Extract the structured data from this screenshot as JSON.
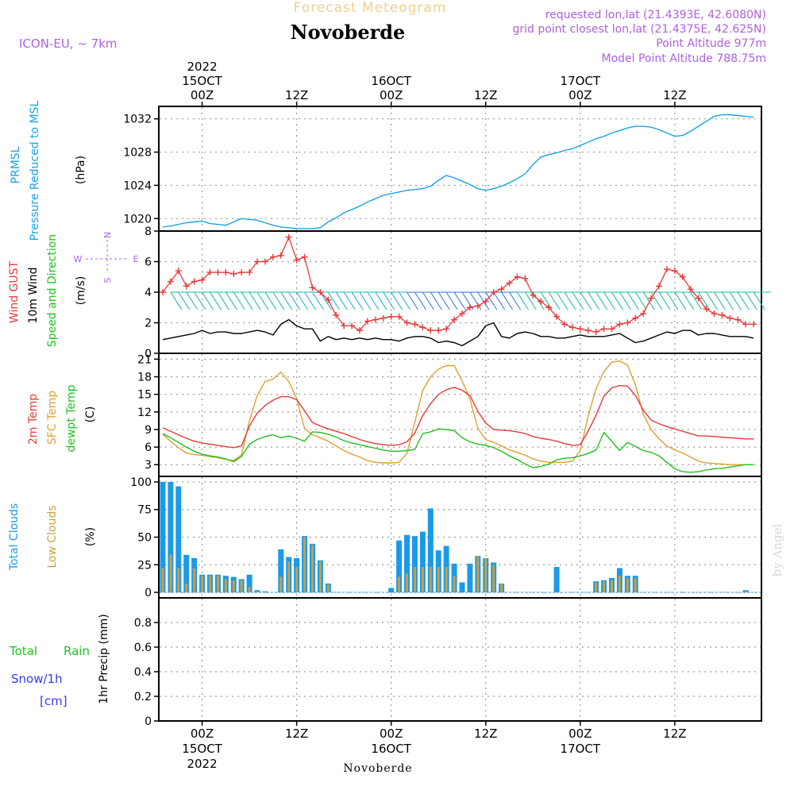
{
  "header": {
    "banner": "Forecast Meteogram",
    "location": "Novoberde",
    "model": "ICON-EU, ~ 7km",
    "requested": "requested lon,lat (21.4393E, 42.6080N)",
    "gridpoint": "grid point closest lon,lat (21.4375E, 42.625N)",
    "point_altitude": "Point Altitude 977m",
    "model_altitude": "Model Point Altitude 788.75m",
    "year": "2022",
    "watermark": "by Angel",
    "footer_location": "Novoberde"
  },
  "time_axis": {
    "top_ticks": [
      {
        "t": 0,
        "lines": [
          "2022",
          "15OCT",
          "00Z"
        ]
      },
      {
        "t": 12,
        "lines": [
          "12Z"
        ]
      },
      {
        "t": 24,
        "lines": [
          "16OCT",
          "00Z"
        ]
      },
      {
        "t": 36,
        "lines": [
          "12Z"
        ]
      },
      {
        "t": 48,
        "lines": [
          "17OCT",
          "00Z"
        ]
      },
      {
        "t": 60,
        "lines": [
          "12Z"
        ]
      }
    ],
    "bottom_ticks": [
      {
        "t": 0,
        "lines": [
          "00Z",
          "15OCT",
          "2022"
        ]
      },
      {
        "t": 12,
        "lines": [
          "12Z"
        ]
      },
      {
        "t": 24,
        "lines": [
          "00Z",
          "16OCT"
        ]
      },
      {
        "t": 36,
        "lines": [
          "12Z"
        ]
      },
      {
        "t": 48,
        "lines": [
          "00Z",
          "17OCT"
        ]
      },
      {
        "t": 60,
        "lines": [
          "12Z"
        ]
      }
    ],
    "range_hours": [
      -5.5,
      71
    ]
  },
  "panels": {
    "pressure": {
      "labels": [
        "PRMSL",
        "Pressure Reduced to MSL",
        "(hPa)"
      ],
      "yticks": [
        "1020",
        "1024",
        "1028",
        "1032"
      ],
      "ylim": [
        1018.5,
        1033.5
      ]
    },
    "wind": {
      "labels": [
        "Wind GUST",
        "10m Wind",
        "Speed and Direction",
        "(m/s)"
      ],
      "compass": [
        "N",
        "S",
        "W",
        "E"
      ],
      "yticks": [
        "0",
        "2",
        "4",
        "6",
        "8"
      ],
      "ylim": [
        0,
        8
      ]
    },
    "temp": {
      "labels": [
        "2m Temp",
        "SFC Temp",
        "dewpt Temp",
        "(C)"
      ],
      "yticks": [
        "3",
        "6",
        "9",
        "12",
        "15",
        "18",
        "21"
      ],
      "ylim": [
        1,
        22
      ]
    },
    "clouds": {
      "labels": [
        "Total Clouds",
        "Low Clouds",
        "(%)"
      ],
      "yticks": [
        "0",
        "25",
        "50",
        "75",
        "100"
      ],
      "ylim": [
        -5,
        105
      ]
    },
    "precip": {
      "labels": [
        "Total",
        "Rain",
        "Snow/1h",
        "[cm]",
        "1hr Precip (mm)"
      ],
      "yticks": [
        "0",
        "0.2",
        "0.4",
        "0.6",
        "0.8"
      ],
      "ylim": [
        0,
        1
      ]
    }
  },
  "colors": {
    "pressure": "#1aa3e8",
    "gust": "#e83a3a",
    "wind": "#000000",
    "temp2m": "#e83a3a",
    "sfc": "#e0a030",
    "dewpt": "#20c020",
    "total_clouds": "#1a9ae8",
    "low_clouds": "#c8a040",
    "model_text": "#b060e0",
    "precip_total": "#20c020",
    "snow": "#3a3ae8"
  },
  "chart_data": [
    {
      "type": "line",
      "name": "pressure",
      "x": [
        -5,
        -4,
        -3,
        -2,
        -1,
        0,
        1,
        2,
        3,
        4,
        5,
        6,
        7,
        8,
        9,
        10,
        11,
        12,
        13,
        14,
        15,
        16,
        17,
        18,
        19,
        20,
        21,
        22,
        23,
        24,
        25,
        26,
        27,
        28,
        29,
        30,
        31,
        32,
        33,
        34,
        35,
        36,
        37,
        38,
        39,
        40,
        41,
        42,
        43,
        44,
        45,
        46,
        47,
        48,
        49,
        50,
        51,
        52,
        53,
        54,
        55,
        56,
        57,
        58,
        59,
        60,
        61,
        62,
        63,
        64,
        65,
        66,
        67,
        68,
        69,
        70
      ],
      "series": [
        {
          "values": [
            1019.0,
            1019.1,
            1019.3,
            1019.5,
            1019.6,
            1019.7,
            1019.4,
            1019.3,
            1019.2,
            1019.6,
            1020.0,
            1019.9,
            1019.8,
            1019.5,
            1019.2,
            1019.0,
            1018.9,
            1018.8,
            1018.8,
            1018.8,
            1018.9,
            1019.6,
            1020.1,
            1020.7,
            1021.1,
            1021.5,
            1022.0,
            1022.4,
            1022.8,
            1023.0,
            1023.2,
            1023.4,
            1023.5,
            1023.6,
            1023.9,
            1024.6,
            1025.2,
            1024.9,
            1024.5,
            1024.1,
            1023.6,
            1023.4,
            1023.6,
            1023.9,
            1024.3,
            1024.8,
            1025.4,
            1026.5,
            1027.4,
            1027.7,
            1027.9,
            1028.2,
            1028.4,
            1028.8,
            1029.2,
            1029.6,
            1029.9,
            1030.3,
            1030.6,
            1030.9,
            1031.1,
            1031.1,
            1031.0,
            1030.7,
            1030.3,
            1029.9,
            1030.0,
            1030.5,
            1031.1,
            1031.7,
            1032.3,
            1032.5,
            1032.5,
            1032.4,
            1032.3,
            1032.2
          ]
        }
      ],
      "ylim": [
        1018.5,
        1033.5
      ]
    },
    {
      "type": "line",
      "name": "wind",
      "x": [
        -5,
        -4,
        -3,
        -2,
        -1,
        0,
        1,
        2,
        3,
        4,
        5,
        6,
        7,
        8,
        9,
        10,
        11,
        12,
        13,
        14,
        15,
        16,
        17,
        18,
        19,
        20,
        21,
        22,
        23,
        24,
        25,
        26,
        27,
        28,
        29,
        30,
        31,
        32,
        33,
        34,
        35,
        36,
        37,
        38,
        39,
        40,
        41,
        42,
        43,
        44,
        45,
        46,
        47,
        48,
        49,
        50,
        51,
        52,
        53,
        54,
        55,
        56,
        57,
        58,
        59,
        60,
        61,
        62,
        63,
        64,
        65,
        66,
        67,
        68,
        69,
        70
      ],
      "series": [
        {
          "name": "Wind GUST",
          "values": [
            4.0,
            4.7,
            5.4,
            4.4,
            4.7,
            4.8,
            5.3,
            5.3,
            5.3,
            5.2,
            5.3,
            5.3,
            6.0,
            6.0,
            6.3,
            6.4,
            7.6,
            6.1,
            6.3,
            4.3,
            4.0,
            3.5,
            2.5,
            1.8,
            1.8,
            1.5,
            2.1,
            2.2,
            2.3,
            2.4,
            2.4,
            2.0,
            1.9,
            1.7,
            1.5,
            1.5,
            1.6,
            2.2,
            2.6,
            3.0,
            3.1,
            3.4,
            4.0,
            4.2,
            4.6,
            5.0,
            4.9,
            3.8,
            3.4,
            3.0,
            2.4,
            1.9,
            1.7,
            1.6,
            1.5,
            1.4,
            1.6,
            1.6,
            1.9,
            2.0,
            2.3,
            2.6,
            3.6,
            4.4,
            5.5,
            5.4,
            5.0,
            4.2,
            3.6,
            2.9,
            2.6,
            2.5,
            2.3,
            2.2,
            1.9,
            1.9
          ]
        },
        {
          "name": "10m Wind",
          "values": [
            0.9,
            1.0,
            1.1,
            1.2,
            1.3,
            1.5,
            1.3,
            1.4,
            1.4,
            1.3,
            1.3,
            1.4,
            1.5,
            1.4,
            1.2,
            1.9,
            2.2,
            1.8,
            1.6,
            1.6,
            0.8,
            1.1,
            0.9,
            1.0,
            0.9,
            1.0,
            0.9,
            1.0,
            0.9,
            0.9,
            0.8,
            1.0,
            1.1,
            1.1,
            1.0,
            0.7,
            0.8,
            0.7,
            0.5,
            0.8,
            1.1,
            1.8,
            2.0,
            1.1,
            1.0,
            1.3,
            1.4,
            1.3,
            1.1,
            1.1,
            1.0,
            1.0,
            1.1,
            1.2,
            1.1,
            1.1,
            1.1,
            1.2,
            1.3,
            1.0,
            0.7,
            0.8,
            1.0,
            1.2,
            1.4,
            1.3,
            1.5,
            1.5,
            1.2,
            1.3,
            1.3,
            1.2,
            1.1,
            1.1,
            1.1,
            1.0
          ]
        }
      ],
      "ylim": [
        0,
        8
      ]
    },
    {
      "type": "line",
      "name": "temperature",
      "x": [
        -5,
        -4,
        -3,
        -2,
        -1,
        0,
        1,
        2,
        3,
        4,
        5,
        6,
        7,
        8,
        9,
        10,
        11,
        12,
        13,
        14,
        15,
        16,
        17,
        18,
        19,
        20,
        21,
        22,
        23,
        24,
        25,
        26,
        27,
        28,
        29,
        30,
        31,
        32,
        33,
        34,
        35,
        36,
        37,
        38,
        39,
        40,
        41,
        42,
        43,
        44,
        45,
        46,
        47,
        48,
        49,
        50,
        51,
        52,
        53,
        54,
        55,
        56,
        57,
        58,
        59,
        60,
        61,
        62,
        63,
        64,
        65,
        66,
        67,
        68,
        69,
        70
      ],
      "series": [
        {
          "name": "2m Temp",
          "values": [
            9.3,
            8.7,
            8.1,
            7.5,
            7.0,
            6.7,
            6.5,
            6.3,
            6.1,
            5.9,
            6.2,
            9.6,
            11.8,
            13.1,
            14.0,
            14.6,
            14.6,
            14.1,
            12.2,
            10.2,
            9.6,
            9.1,
            8.7,
            8.3,
            7.8,
            7.3,
            6.9,
            6.6,
            6.4,
            6.3,
            6.4,
            6.9,
            8.4,
            11.4,
            13.4,
            15.0,
            15.8,
            16.2,
            15.7,
            14.8,
            12.1,
            10.1,
            9.0,
            8.9,
            8.8,
            8.6,
            8.3,
            7.8,
            7.5,
            7.3,
            7.0,
            6.6,
            6.3,
            6.4,
            8.7,
            11.4,
            14.7,
            16.1,
            16.5,
            16.4,
            14.8,
            12.3,
            10.6,
            10.0,
            9.5,
            9.1,
            8.7,
            8.3,
            7.9,
            7.9,
            7.8,
            7.7,
            7.6,
            7.5,
            7.4,
            7.4
          ]
        },
        {
          "name": "SFC Temp",
          "values": [
            8.2,
            7.0,
            5.9,
            5.0,
            4.7,
            4.6,
            4.4,
            4.2,
            3.9,
            3.7,
            4.7,
            10.5,
            14.8,
            17.2,
            17.6,
            18.8,
            17.2,
            14.3,
            9.2,
            8.1,
            7.6,
            7.0,
            6.2,
            5.4,
            4.8,
            4.3,
            3.7,
            3.4,
            3.3,
            3.3,
            3.4,
            4.9,
            10.3,
            15.7,
            18.0,
            19.3,
            19.9,
            19.9,
            17.3,
            14.2,
            9.2,
            7.3,
            6.8,
            6.2,
            5.5,
            5.1,
            4.6,
            4.0,
            3.6,
            3.4,
            3.4,
            3.4,
            3.6,
            5.4,
            11.3,
            15.9,
            18.9,
            20.5,
            20.7,
            20.0,
            16.6,
            11.6,
            9.0,
            7.4,
            6.2,
            5.5,
            5.0,
            4.3,
            3.6,
            3.3,
            3.2,
            3.1,
            3.0,
            3.0,
            3.0,
            3.0
          ]
        },
        {
          "name": "dewpt Temp",
          "values": [
            8.3,
            7.6,
            6.8,
            6.0,
            5.3,
            4.8,
            4.5,
            4.3,
            4.0,
            3.5,
            4.4,
            6.5,
            7.3,
            7.8,
            8.1,
            7.6,
            7.9,
            7.5,
            7.0,
            8.6,
            8.5,
            8.2,
            7.7,
            7.1,
            6.7,
            6.4,
            6.1,
            5.8,
            5.5,
            5.3,
            5.3,
            5.4,
            5.6,
            8.3,
            8.6,
            9.1,
            9.0,
            8.8,
            7.6,
            6.9,
            6.5,
            6.3,
            5.9,
            5.3,
            4.5,
            3.9,
            3.1,
            2.5,
            2.7,
            3.1,
            3.8,
            4.1,
            4.2,
            4.5,
            4.9,
            5.5,
            8.5,
            7.0,
            5.4,
            6.8,
            6.1,
            5.4,
            5.1,
            4.5,
            3.4,
            2.3,
            1.8,
            1.7,
            1.8,
            2.1,
            2.3,
            2.4,
            2.6,
            2.8,
            3.0,
            3.0
          ]
        }
      ],
      "ylim": [
        1,
        22
      ]
    },
    {
      "type": "bar",
      "name": "clouds",
      "x": [
        -5,
        -4,
        -3,
        -2,
        -1,
        0,
        1,
        2,
        3,
        4,
        5,
        6,
        7,
        8,
        9,
        10,
        11,
        12,
        13,
        14,
        15,
        16,
        17,
        18,
        19,
        20,
        21,
        22,
        23,
        24,
        25,
        26,
        27,
        28,
        29,
        30,
        31,
        32,
        33,
        34,
        35,
        36,
        37,
        38,
        39,
        40,
        41,
        42,
        43,
        44,
        45,
        46,
        47,
        48,
        49,
        50,
        51,
        52,
        53,
        54,
        55,
        56,
        57,
        58,
        59,
        60,
        61,
        62,
        63,
        64,
        65,
        66,
        67,
        68,
        69,
        70
      ],
      "series": [
        {
          "name": "Total Clouds",
          "values": [
            100,
            100,
            96,
            34,
            31,
            16,
            16,
            16,
            15,
            14,
            12,
            16,
            2,
            1,
            0,
            39,
            32,
            31,
            51,
            44,
            29,
            8,
            0,
            0,
            0,
            0,
            0,
            0,
            0,
            4,
            47,
            52,
            51,
            55,
            76,
            38,
            42,
            26,
            9,
            26,
            33,
            31,
            27,
            8,
            0,
            0,
            0,
            0,
            0,
            0,
            23,
            0,
            0,
            0,
            0,
            10,
            11,
            13,
            22,
            15,
            15,
            0,
            0,
            0,
            0,
            0,
            0,
            0,
            0,
            0,
            0,
            0,
            0,
            0,
            2,
            0
          ]
        },
        {
          "name": "Low Clouds",
          "values": [
            22,
            34,
            22,
            8,
            22,
            15,
            15,
            15,
            12,
            11,
            11,
            5,
            1,
            1,
            0,
            14,
            28,
            23,
            50,
            43,
            28,
            7,
            0,
            0,
            0,
            0,
            0,
            0,
            0,
            0,
            14,
            17,
            23,
            23,
            23,
            23,
            23,
            15,
            0,
            0,
            33,
            31,
            25,
            8,
            0,
            0,
            0,
            0,
            0,
            0,
            0,
            0,
            0,
            0,
            0,
            9,
            10,
            11,
            15,
            13,
            13,
            0,
            0,
            0,
            0,
            0,
            0,
            0,
            0,
            0,
            0,
            0,
            0,
            0,
            1,
            0
          ]
        }
      ],
      "ylim": [
        -5,
        105
      ]
    },
    {
      "type": "bar",
      "name": "precip",
      "x": [],
      "series": [
        {
          "name": "Total Rain",
          "values": []
        },
        {
          "name": "Snow/1h",
          "values": []
        }
      ],
      "ylim": [
        0,
        1
      ]
    }
  ]
}
